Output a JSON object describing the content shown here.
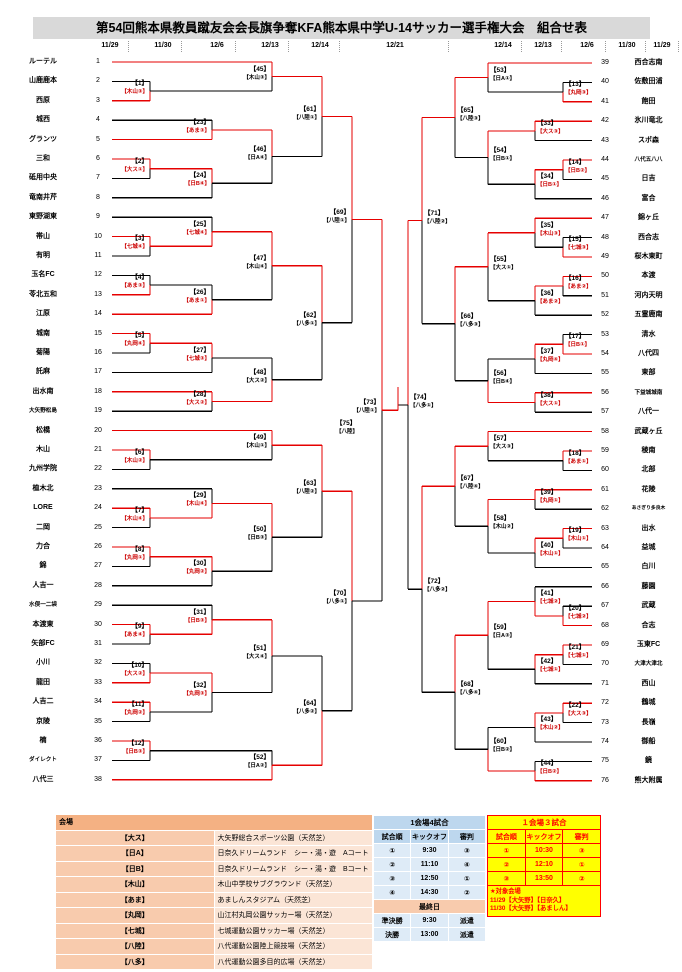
{
  "title": "第54回熊本県教員蹴友会会長旗争奪KFA熊本県中学U-14サッカー選手権大会　組合せ表",
  "header": {
    "dates": [
      "11/29",
      "11/30",
      "12/6",
      "12/13",
      "12/14",
      "12/21",
      "12/14",
      "12/13",
      "12/6",
      "11/30",
      "11/29"
    ]
  },
  "teams_left": [
    {
      "n": 1,
      "name": "ルーテル"
    },
    {
      "n": 2,
      "name": "山鹿鹿本"
    },
    {
      "n": 3,
      "name": "西原"
    },
    {
      "n": 4,
      "name": "城西"
    },
    {
      "n": 5,
      "name": "グランツ"
    },
    {
      "n": 6,
      "name": "三和"
    },
    {
      "n": 7,
      "name": "砥用中央"
    },
    {
      "n": 8,
      "name": "竜南井芹"
    },
    {
      "n": 9,
      "name": "東野湖東"
    },
    {
      "n": 10,
      "name": "帯山"
    },
    {
      "n": 11,
      "name": "有明"
    },
    {
      "n": 12,
      "name": "玉名FC"
    },
    {
      "n": 13,
      "name": "苓北五和"
    },
    {
      "n": 14,
      "name": "江原"
    },
    {
      "n": 15,
      "name": "城南"
    },
    {
      "n": 16,
      "name": "菊陽"
    },
    {
      "n": 17,
      "name": "託麻"
    },
    {
      "n": 18,
      "name": "出水南"
    },
    {
      "n": 19,
      "name": "大矢野松島"
    },
    {
      "n": 20,
      "name": "松橋"
    },
    {
      "n": 21,
      "name": "木山"
    },
    {
      "n": 22,
      "name": "九州学院"
    },
    {
      "n": 23,
      "name": "植木北"
    },
    {
      "n": 24,
      "name": "LORE"
    },
    {
      "n": 25,
      "name": "二岡"
    },
    {
      "n": 26,
      "name": "力合"
    },
    {
      "n": 27,
      "name": "錦"
    },
    {
      "n": 28,
      "name": "人吉一"
    },
    {
      "n": 29,
      "name": "水俣一二袋"
    },
    {
      "n": 30,
      "name": "本渡東"
    },
    {
      "n": 31,
      "name": "矢部FC"
    },
    {
      "n": 32,
      "name": "小川"
    },
    {
      "n": 33,
      "name": "龍田"
    },
    {
      "n": 34,
      "name": "人吉二"
    },
    {
      "n": 35,
      "name": "京陵"
    },
    {
      "n": 36,
      "name": "楠"
    },
    {
      "n": 37,
      "name": "ダイレクト"
    },
    {
      "n": 38,
      "name": "八代三"
    }
  ],
  "teams_right": [
    {
      "n": 39,
      "name": "西合志南"
    },
    {
      "n": 40,
      "name": "佐敷田浦"
    },
    {
      "n": 41,
      "name": "飽田"
    },
    {
      "n": 42,
      "name": "氷川竜北"
    },
    {
      "n": 43,
      "name": "スポ森"
    },
    {
      "n": 44,
      "name": "八代五八八"
    },
    {
      "n": 45,
      "name": "日吉"
    },
    {
      "n": 46,
      "name": "富合"
    },
    {
      "n": 47,
      "name": "錦ヶ丘"
    },
    {
      "n": 48,
      "name": "西合志"
    },
    {
      "n": 49,
      "name": "桜木東町"
    },
    {
      "n": 50,
      "name": "本渡"
    },
    {
      "n": 51,
      "name": "河内天明"
    },
    {
      "n": 52,
      "name": "五霊鹿南"
    },
    {
      "n": 53,
      "name": "清水"
    },
    {
      "n": 54,
      "name": "八代四"
    },
    {
      "n": 55,
      "name": "東部"
    },
    {
      "n": 56,
      "name": "下益城城南"
    },
    {
      "n": 57,
      "name": "八代一"
    },
    {
      "n": 58,
      "name": "武蔵ヶ丘"
    },
    {
      "n": 59,
      "name": "稜南"
    },
    {
      "n": 60,
      "name": "北部"
    },
    {
      "n": 61,
      "name": "花陵"
    },
    {
      "n": 62,
      "name": "あさぎり多良木"
    },
    {
      "n": 63,
      "name": "出水"
    },
    {
      "n": 64,
      "name": "益城"
    },
    {
      "n": 65,
      "name": "白川"
    },
    {
      "n": 66,
      "name": "藤園"
    },
    {
      "n": 67,
      "name": "武蔵"
    },
    {
      "n": 68,
      "name": "合志"
    },
    {
      "n": 69,
      "name": "玉東FC"
    },
    {
      "n": 70,
      "name": "大津大津北"
    },
    {
      "n": 71,
      "name": "西山"
    },
    {
      "n": 72,
      "name": "鶴城"
    },
    {
      "n": 73,
      "name": "長嶺"
    },
    {
      "n": 74,
      "name": "御船"
    },
    {
      "n": 75,
      "name": "鏡"
    },
    {
      "n": 76,
      "name": "熊大附属"
    }
  ],
  "matches": [
    {
      "id": 1,
      "side": "L",
      "col": 1,
      "top": "T2",
      "bot": "T3",
      "win": "b",
      "venue": "【木山③】"
    },
    {
      "id": 2,
      "side": "L",
      "col": 1,
      "top": "T6",
      "bot": "T7",
      "win": "t",
      "venue": "【大ス①】"
    },
    {
      "id": 3,
      "side": "L",
      "col": 1,
      "top": "T10",
      "bot": "T11",
      "win": "t",
      "venue": "【七城④】"
    },
    {
      "id": 4,
      "side": "L",
      "col": 1,
      "top": "T12",
      "bot": "T13",
      "win": "b",
      "venue": "【あま③】"
    },
    {
      "id": 5,
      "side": "L",
      "col": 1,
      "top": "T15",
      "bot": "T16",
      "win": "t",
      "venue": "【丸岡④】"
    },
    {
      "id": 6,
      "side": "L",
      "col": 1,
      "top": "T21",
      "bot": "T22",
      "win": "t",
      "venue": "【木山②】"
    },
    {
      "id": 7,
      "side": "L",
      "col": 1,
      "top": "T24",
      "bot": "T25",
      "win": "t",
      "venue": "【木山④】"
    },
    {
      "id": 8,
      "side": "L",
      "col": 1,
      "top": "T26",
      "bot": "T27",
      "win": "t",
      "venue": "【丸岡①】"
    },
    {
      "id": 9,
      "side": "L",
      "col": 1,
      "top": "T30",
      "bot": "T31",
      "win": "t",
      "venue": "【あま④】"
    },
    {
      "id": 10,
      "side": "L",
      "col": 1,
      "top": "T32",
      "bot": "T33",
      "win": "b",
      "venue": "【大ス②】"
    },
    {
      "id": 11,
      "side": "L",
      "col": 1,
      "top": "T34",
      "bot": "T35",
      "win": "t",
      "venue": "【丸岡②】"
    },
    {
      "id": 12,
      "side": "L",
      "col": 1,
      "top": "T36",
      "bot": "T37",
      "win": "t",
      "venue": "【日B③】"
    },
    {
      "id": 13,
      "side": "R",
      "col": 1,
      "top": "T40",
      "bot": "T41",
      "win": "b",
      "venue": "【丸岡③】"
    },
    {
      "id": 14,
      "side": "R",
      "col": 1,
      "top": "T44",
      "bot": "T45",
      "win": "t",
      "venue": "【日B②】"
    },
    {
      "id": 15,
      "side": "R",
      "col": 1,
      "top": "T48",
      "bot": "T49",
      "win": "b",
      "venue": "【七城③】"
    },
    {
      "id": 16,
      "side": "R",
      "col": 1,
      "top": "T50",
      "bot": "T51",
      "win": "t",
      "venue": "【あま②】"
    },
    {
      "id": 17,
      "side": "R",
      "col": 1,
      "top": "T53",
      "bot": "T54",
      "win": "b",
      "venue": "【日B①】"
    },
    {
      "id": 18,
      "side": "R",
      "col": 1,
      "top": "T59",
      "bot": "T60",
      "win": "t",
      "venue": "【あま①】"
    },
    {
      "id": 19,
      "side": "R",
      "col": 1,
      "top": "T63",
      "bot": "T64",
      "win": "t",
      "venue": "【木山①】"
    },
    {
      "id": 20,
      "side": "R",
      "col": 1,
      "top": "T67",
      "bot": "T68",
      "win": "b",
      "venue": "【七城②】"
    },
    {
      "id": 21,
      "side": "R",
      "col": 1,
      "top": "T69",
      "bot": "T70",
      "win": "t",
      "venue": "【七城①】"
    },
    {
      "id": 22,
      "side": "R",
      "col": 1,
      "top": "T72",
      "bot": "T73",
      "win": "t",
      "venue": "【大ス③】"
    },
    {
      "id": 23,
      "side": "L",
      "col": 2,
      "top": "T4",
      "bot": "T5",
      "win": "b",
      "venue": "【あま③】"
    },
    {
      "id": 24,
      "side": "L",
      "col": 2,
      "top": "M2",
      "bot": "T8",
      "win": "t",
      "venue": "【日B④】"
    },
    {
      "id": 25,
      "side": "L",
      "col": 2,
      "top": "T9",
      "bot": "M3",
      "win": "b",
      "venue": "【七城④】"
    },
    {
      "id": 26,
      "side": "L",
      "col": 2,
      "top": "M4",
      "bot": "T14",
      "win": "b",
      "venue": "【あま①】"
    },
    {
      "id": 27,
      "side": "L",
      "col": 2,
      "top": "M5",
      "bot": "T17",
      "win": "t",
      "venue": "【七城③】"
    },
    {
      "id": 28,
      "side": "L",
      "col": 2,
      "top": "T18",
      "bot": "T19",
      "win": "t",
      "venue": "【大ス②】"
    },
    {
      "id": 29,
      "side": "L",
      "col": 2,
      "top": "T23",
      "bot": "M7",
      "win": "b",
      "venue": "【木山④】"
    },
    {
      "id": 30,
      "side": "L",
      "col": 2,
      "top": "M8",
      "bot": "T28",
      "win": "t",
      "venue": "【丸岡②】"
    },
    {
      "id": 31,
      "side": "L",
      "col": 2,
      "top": "T29",
      "bot": "M9",
      "win": "b",
      "venue": "【日B③】"
    },
    {
      "id": 32,
      "side": "L",
      "col": 2,
      "top": "M10",
      "bot": "M11",
      "win": "t",
      "venue": "【丸岡③】"
    },
    {
      "id": 33,
      "side": "R",
      "col": 2,
      "top": "T42",
      "bot": "T43",
      "win": "t",
      "venue": "【大ス③】"
    },
    {
      "id": 34,
      "side": "R",
      "col": 2,
      "top": "M14",
      "bot": "T46",
      "win": "t",
      "venue": "【日B①】"
    },
    {
      "id": 35,
      "side": "R",
      "col": 2,
      "top": "T47",
      "bot": "M15",
      "win": "t",
      "venue": "【木山③】"
    },
    {
      "id": 36,
      "side": "R",
      "col": 2,
      "top": "M16",
      "bot": "T52",
      "win": "t",
      "venue": "【あま②】"
    },
    {
      "id": 37,
      "side": "R",
      "col": 2,
      "top": "M17",
      "bot": "T55",
      "win": "t",
      "venue": "【丸岡④】"
    },
    {
      "id": 38,
      "side": "R",
      "col": 2,
      "top": "T56",
      "bot": "T57",
      "win": "t",
      "venue": "【大ス①】"
    },
    {
      "id": 39,
      "side": "R",
      "col": 2,
      "top": "T61",
      "bot": "T62",
      "win": "t",
      "venue": "【丸岡①】"
    },
    {
      "id": 40,
      "side": "R",
      "col": 2,
      "top": "M19",
      "bot": "T65",
      "win": "t",
      "venue": "【木山①】"
    },
    {
      "id": 41,
      "side": "R",
      "col": 2,
      "top": "T66",
      "bot": "M20",
      "win": "b",
      "venue": "【七城②】"
    },
    {
      "id": 42,
      "side": "R",
      "col": 2,
      "top": "M21",
      "bot": "T71",
      "win": "t",
      "venue": "【七城①】"
    },
    {
      "id": 43,
      "side": "R",
      "col": 2,
      "top": "M22",
      "bot": "T74",
      "win": "t",
      "venue": "【木山②】"
    },
    {
      "id": 44,
      "side": "R",
      "col": 2,
      "top": "T75",
      "bot": "T76",
      "win": "b",
      "venue": "【日B②】"
    },
    {
      "id": 45,
      "side": "L",
      "col": 3,
      "top": "T1",
      "bot": "M1",
      "win": "t",
      "venue": "【木山③】"
    },
    {
      "id": 46,
      "side": "L",
      "col": 3,
      "top": "M23",
      "bot": "M24",
      "win": "t",
      "venue": "【日A④】"
    },
    {
      "id": 47,
      "side": "L",
      "col": 3,
      "top": "M25",
      "bot": "M26",
      "win": "t",
      "venue": "【木山④】"
    },
    {
      "id": 48,
      "side": "L",
      "col": 3,
      "top": "M27",
      "bot": "M28",
      "win": "b",
      "venue": "【大ス②】"
    },
    {
      "id": 49,
      "side": "L",
      "col": 3,
      "top": "T20",
      "bot": "M6",
      "win": "t",
      "venue": "【木山①】"
    },
    {
      "id": 50,
      "side": "L",
      "col": 3,
      "top": "M29",
      "bot": "M30",
      "win": "t",
      "venue": "【日B③】"
    },
    {
      "id": 51,
      "side": "L",
      "col": 3,
      "top": "M31",
      "bot": "M32",
      "win": "t",
      "venue": "【大ス④】"
    },
    {
      "id": 52,
      "side": "L",
      "col": 3,
      "top": "M12",
      "bot": "T38",
      "win": "b",
      "venue": "【日A②】"
    },
    {
      "id": 53,
      "side": "R",
      "col": 3,
      "top": "T39",
      "bot": "M13",
      "win": "t",
      "venue": "【日A①】"
    },
    {
      "id": 54,
      "side": "R",
      "col": 3,
      "top": "M33",
      "bot": "M34",
      "win": "t",
      "venue": "【日B①】"
    },
    {
      "id": 55,
      "side": "R",
      "col": 3,
      "top": "M35",
      "bot": "M36",
      "win": "t",
      "venue": "【大ス①】"
    },
    {
      "id": 56,
      "side": "R",
      "col": 3,
      "top": "M37",
      "bot": "M38",
      "win": "b",
      "venue": "【日B④】"
    },
    {
      "id": 57,
      "side": "R",
      "col": 3,
      "top": "T58",
      "bot": "M18",
      "win": "t",
      "venue": "【大ス③】"
    },
    {
      "id": 58,
      "side": "R",
      "col": 3,
      "top": "M39",
      "bot": "M40",
      "win": "t",
      "venue": "【木山②】"
    },
    {
      "id": 59,
      "side": "R",
      "col": 3,
      "top": "M41",
      "bot": "M42",
      "win": "t",
      "venue": "【日A③】"
    },
    {
      "id": 60,
      "side": "R",
      "col": 3,
      "top": "M43",
      "bot": "M44",
      "win": "b",
      "venue": "【日B②】"
    },
    {
      "id": 61,
      "side": "L",
      "col": 4,
      "top": "M45",
      "bot": "M46",
      "win": "t",
      "venue": "【八陸①】"
    },
    {
      "id": 62,
      "side": "L",
      "col": 4,
      "top": "M47",
      "bot": "M48",
      "win": "t",
      "venue": "【八多①】"
    },
    {
      "id": 63,
      "side": "L",
      "col": 4,
      "top": "M49",
      "bot": "M50",
      "win": "t",
      "venue": "【八陸②】"
    },
    {
      "id": 64,
      "side": "L",
      "col": 4,
      "top": "M51",
      "bot": "M52",
      "win": "b",
      "venue": "【八多②】"
    },
    {
      "id": 65,
      "side": "R",
      "col": 4,
      "top": "M53",
      "bot": "M54",
      "win": "t",
      "venue": "【八陸③】"
    },
    {
      "id": 66,
      "side": "R",
      "col": 4,
      "top": "M55",
      "bot": "M56",
      "win": "t",
      "venue": "【八多③】"
    },
    {
      "id": 67,
      "side": "R",
      "col": 4,
      "top": "M57",
      "bot": "M58",
      "win": "t",
      "venue": "【八陸④】"
    },
    {
      "id": 68,
      "side": "R",
      "col": 4,
      "top": "M59",
      "bot": "M60",
      "win": "t",
      "venue": "【八多④】"
    },
    {
      "id": 69,
      "side": "L",
      "col": 5,
      "top": "M61",
      "bot": "M62",
      "win": "t",
      "venue": "【八陸①】"
    },
    {
      "id": 70,
      "side": "L",
      "col": 5,
      "top": "M63",
      "bot": "M64",
      "win": "t",
      "venue": "【八多①】"
    },
    {
      "id": 71,
      "side": "R",
      "col": 5,
      "top": "M65",
      "bot": "M66",
      "win": "t",
      "venue": "【八陸②】"
    },
    {
      "id": 72,
      "side": "R",
      "col": 5,
      "top": "M67",
      "bot": "M68",
      "win": "t",
      "venue": "【八多②】"
    },
    {
      "id": 73,
      "side": "L",
      "col": 6,
      "top": "M69",
      "bot": "M70",
      "win": "t",
      "venue": "【八陸①】"
    },
    {
      "id": 74,
      "side": "R",
      "col": 6,
      "top": "M71",
      "bot": "M72",
      "win": "t",
      "venue": "【八多①】"
    }
  ],
  "final": {
    "num": "【75】",
    "venue": "【八陸】",
    "winner": "left"
  },
  "venues": {
    "header": "会場",
    "rows": [
      [
        "【大ス】",
        "大矢野総合スポーツ公園（天然芝）"
      ],
      [
        "【日A】",
        "日奈久ドリームランド　シー・湯・遊　Aコート（天然芝）"
      ],
      [
        "【日B】",
        "日奈久ドリームランド　シー・湯・遊　Bコート（天然芝）"
      ],
      [
        "【木山】",
        "木山中学校サブグラウンド（天然芝）"
      ],
      [
        "【あま】",
        "あましんスタジアム（天然芝）"
      ],
      [
        "【丸岡】",
        "山江村丸岡公園サッカー場（天然芝）"
      ],
      [
        "【七城】",
        "七城運動公園サッカー場（天然芝）"
      ],
      [
        "【八陸】",
        "八代運動公園陸上競技場（天然芝）"
      ],
      [
        "【八多】",
        "八代運動公園多目的広場（天然芝）"
      ]
    ]
  },
  "schedule4": {
    "title": "1会場4試合",
    "cols": [
      "試合順",
      "キックオフ",
      "審判"
    ],
    "rows": [
      [
        "①",
        "9:30",
        "③"
      ],
      [
        "②",
        "11:10",
        "④"
      ],
      [
        "③",
        "12:50",
        "①"
      ],
      [
        "④",
        "14:30",
        "②"
      ]
    ],
    "final_day": "最終日",
    "final_rows": [
      [
        "準決勝",
        "9:30",
        "派遣"
      ],
      [
        "決勝",
        "13:00",
        "派遣"
      ]
    ]
  },
  "schedule3": {
    "title": "１会場３試合",
    "cols": [
      "試合順",
      "キックオフ",
      "審判"
    ],
    "rows": [
      [
        "①",
        "10:30",
        "③"
      ],
      [
        "②",
        "12:10",
        "①"
      ],
      [
        "③",
        "13:50",
        "②"
      ]
    ],
    "note": [
      "★対象会場",
      "11/29【大矢野】【日奈久】",
      "11/30【大矢野】【あましん】"
    ]
  },
  "colors": {
    "line_red": "#e60000",
    "line_black": "#000000",
    "title_bg": "#d9d9d9",
    "venue_header_bg": "#f4b183",
    "venue_label_bg": "#f8cbad",
    "venue_value_bg": "#fbe5d6",
    "blue_head": "#bdd7ee",
    "blue_row": "#deebf7",
    "yellow": "#ffff00",
    "red_text": "#ff0000",
    "venue_tag_red": "#cc0000"
  }
}
